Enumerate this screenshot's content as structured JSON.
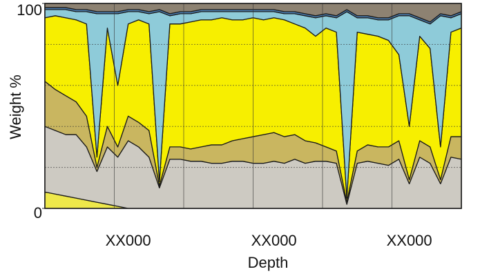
{
  "chart_data": {
    "type": "stacked-area",
    "y_label": "Weight %",
    "x_label": "Depth",
    "categories": [
      null,
      null,
      null,
      null,
      null,
      null,
      null,
      null,
      "XX000",
      null,
      null,
      null,
      null,
      null,
      null,
      null,
      null,
      null,
      null,
      null,
      null,
      null,
      "XX000",
      null,
      null,
      null,
      null,
      null,
      null,
      null,
      null,
      null,
      null,
      null,
      null,
      "XX000",
      null,
      null,
      null,
      null,
      null
    ],
    "series": [
      {
        "color": "#eee84a",
        "values": [
          8,
          7,
          6,
          5,
          4,
          3,
          2,
          1,
          0,
          0,
          0,
          0,
          0,
          0,
          0,
          0,
          0,
          0,
          0,
          0,
          0,
          0,
          0,
          0,
          0,
          0,
          0,
          0,
          0,
          0,
          0,
          0,
          0,
          0,
          0,
          0,
          0,
          0,
          0,
          0,
          0
        ]
      },
      {
        "color": "#cdcac2",
        "values": [
          32,
          31,
          30,
          31,
          26,
          15,
          28,
          24,
          33,
          30,
          25,
          10,
          24,
          24,
          23,
          23,
          22,
          22,
          23,
          23,
          22,
          22,
          23,
          22,
          24,
          22,
          23,
          23,
          22,
          2,
          22,
          23,
          22,
          21,
          24,
          12,
          25,
          22,
          12,
          25,
          24
        ]
      },
      {
        "color": "#c9b660",
        "values": [
          22,
          20,
          19,
          16,
          15,
          2,
          10,
          5,
          12,
          12,
          13,
          1,
          6,
          6,
          6,
          7,
          9,
          9,
          10,
          11,
          13,
          14,
          14,
          13,
          12,
          11,
          9,
          7,
          6,
          1,
          6,
          8,
          8,
          9,
          9,
          2,
          8,
          8,
          2,
          10,
          11
        ]
      },
      {
        "color": "#f7ef00",
        "values": [
          31,
          36,
          38,
          40,
          45,
          5,
          48,
          30,
          45,
          50,
          52,
          2,
          60,
          60,
          62,
          62,
          61,
          62,
          59,
          58,
          58,
          56,
          56,
          57,
          54,
          55,
          52,
          58,
          58,
          2,
          58,
          54,
          54,
          52,
          42,
          26,
          51,
          48,
          16,
          51,
          53
        ]
      },
      {
        "color": "#8ecbd9",
        "values": [
          4,
          3,
          4,
          4,
          6,
          70,
          7,
          35,
          6,
          4,
          5,
          83,
          4,
          5,
          4,
          4,
          4,
          3,
          4,
          4,
          3,
          4,
          3,
          3,
          5,
          6,
          9,
          6,
          7,
          91,
          7,
          8,
          8,
          10,
          19,
          54,
          8,
          12,
          64,
          7,
          7
        ]
      },
      {
        "color": "#4c7fb2",
        "values": [
          1,
          1,
          1,
          1,
          1,
          1,
          1,
          1,
          1,
          1,
          1,
          1,
          1,
          1,
          1,
          1,
          1,
          1,
          1,
          1,
          1,
          1,
          1,
          1,
          1,
          1,
          1,
          1,
          1,
          1,
          1,
          1,
          1,
          1,
          1,
          1,
          1,
          1,
          1,
          1,
          1
        ]
      },
      {
        "color": "#8d8272",
        "values": [
          2,
          2,
          2,
          3,
          3,
          4,
          4,
          4,
          3,
          3,
          4,
          3,
          5,
          4,
          4,
          3,
          3,
          3,
          3,
          3,
          3,
          3,
          3,
          4,
          4,
          5,
          6,
          5,
          6,
          3,
          6,
          6,
          7,
          7,
          5,
          5,
          7,
          9,
          5,
          6,
          4
        ]
      }
    ],
    "ylim": [
      0,
      100
    ],
    "yticks": [
      0,
      100
    ],
    "grid": true
  }
}
